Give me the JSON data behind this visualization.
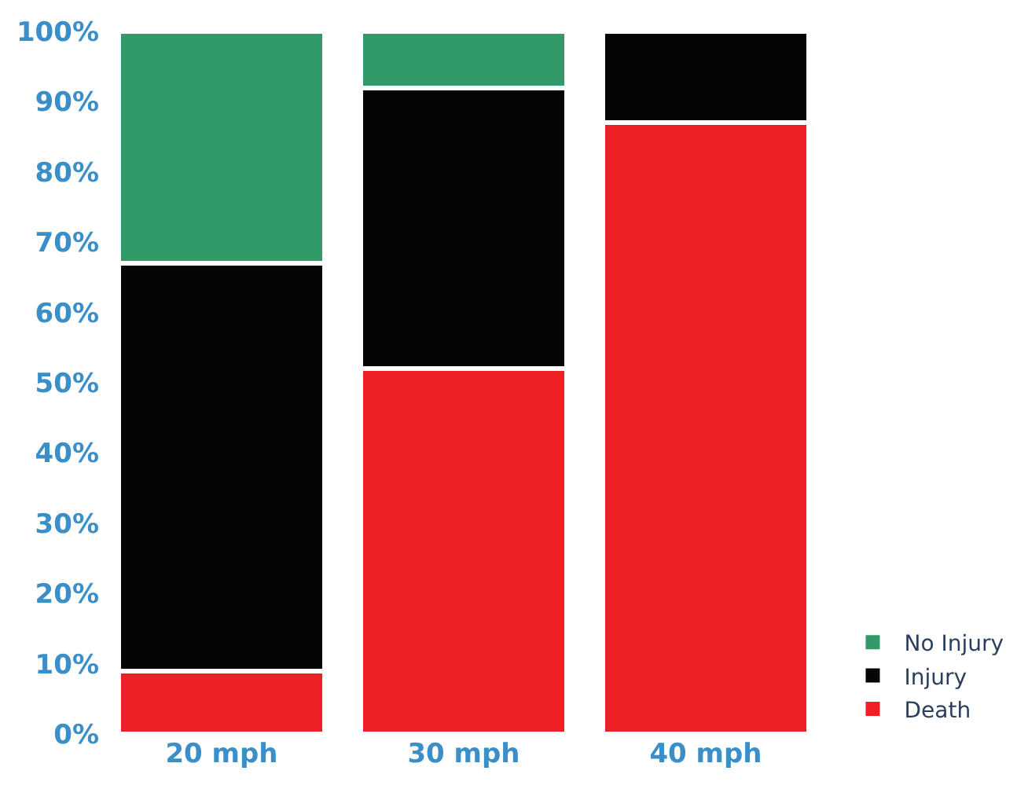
{
  "chart_data": {
    "type": "bar",
    "stacked": true,
    "categories": [
      "20 mph",
      "30 mph",
      "40 mph"
    ],
    "series": [
      {
        "name": "Death",
        "color": "#ee1f25",
        "values": [
          9,
          52,
          87
        ]
      },
      {
        "name": "Injury",
        "color": "#050505",
        "values": [
          58,
          40,
          13
        ]
      },
      {
        "name": "No Injury",
        "color": "#329a68",
        "values": [
          33,
          8,
          null
        ]
      }
    ],
    "ylim": [
      0,
      100
    ],
    "yticks": [
      {
        "value": 0,
        "label": "0%"
      },
      {
        "value": 10,
        "label": "10%"
      },
      {
        "value": 20,
        "label": "20%"
      },
      {
        "value": 30,
        "label": "30%"
      },
      {
        "value": 40,
        "label": "40%"
      },
      {
        "value": 50,
        "label": "50%"
      },
      {
        "value": 60,
        "label": "60%"
      },
      {
        "value": 70,
        "label": "70%"
      },
      {
        "value": 80,
        "label": "80%"
      },
      {
        "value": 90,
        "label": "90%"
      },
      {
        "value": 100,
        "label": "100%"
      }
    ],
    "legend": "bottom right"
  }
}
